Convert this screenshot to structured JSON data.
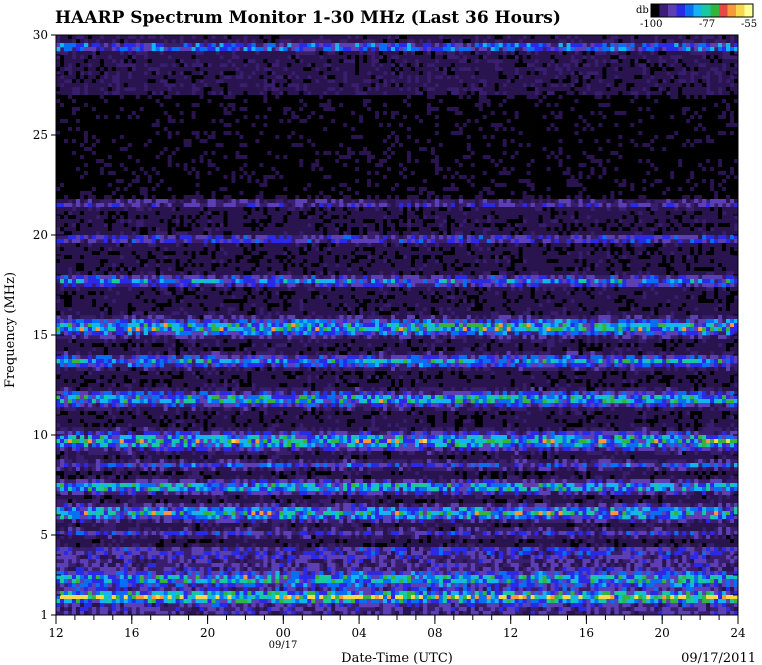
{
  "chart_data": {
    "type": "heatmap",
    "title": "HAARP Spectrum Monitor 1-30 MHz (Last 36 Hours)",
    "xlabel": "Date-Time (UTC)",
    "ylabel": "Frequency (MHz)",
    "date_label": "09/17/2011",
    "day_marker": "09/17",
    "x_hours": [
      12,
      48
    ],
    "x_tick_labels": [
      {
        "hour": 12,
        "label": "12"
      },
      {
        "hour": 16,
        "label": "16"
      },
      {
        "hour": 20,
        "label": "20"
      },
      {
        "hour": 24,
        "label": "00"
      },
      {
        "hour": 28,
        "label": "04"
      },
      {
        "hour": 32,
        "label": "08"
      },
      {
        "hour": 36,
        "label": "12"
      },
      {
        "hour": 40,
        "label": "16"
      },
      {
        "hour": 44,
        "label": "20"
      },
      {
        "hour": 48,
        "label": "24"
      }
    ],
    "ylim": [
      1,
      30
    ],
    "y_ticks": [
      1,
      5,
      10,
      15,
      20,
      25,
      30
    ],
    "colorbar": {
      "unit": "db",
      "min_label": "-100",
      "mid_label": "-77",
      "max_label": "-55",
      "colors": [
        "#000000",
        "#3c1e78",
        "#5c3fb4",
        "#2a2ae6",
        "#0a6ef2",
        "#15b4f0",
        "#18c8a0",
        "#34b43c",
        "#e84848",
        "#f59a3a",
        "#f7d84a",
        "#ffff96"
      ]
    },
    "bands": [
      {
        "freq": 1.9,
        "intensity": 0.75,
        "width": 0.25
      },
      {
        "freq": 2.8,
        "intensity": 0.45,
        "width": 0.3
      },
      {
        "freq": 4.2,
        "intensity": 0.35,
        "width": 0.2
      },
      {
        "freq": 5.1,
        "intensity": 0.3,
        "width": 0.2
      },
      {
        "freq": 6.1,
        "intensity": 0.65,
        "width": 0.35
      },
      {
        "freq": 7.4,
        "intensity": 0.6,
        "width": 0.3
      },
      {
        "freq": 8.5,
        "intensity": 0.35,
        "width": 0.2
      },
      {
        "freq": 9.7,
        "intensity": 0.7,
        "width": 0.4
      },
      {
        "freq": 11.8,
        "intensity": 0.65,
        "width": 0.35
      },
      {
        "freq": 13.7,
        "intensity": 0.55,
        "width": 0.3
      },
      {
        "freq": 15.4,
        "intensity": 0.7,
        "width": 0.4
      },
      {
        "freq": 17.7,
        "intensity": 0.5,
        "width": 0.25
      },
      {
        "freq": 19.8,
        "intensity": 0.35,
        "width": 0.2
      },
      {
        "freq": 21.6,
        "intensity": 0.3,
        "width": 0.2
      },
      {
        "freq": 29.4,
        "intensity": 0.55,
        "width": 0.15
      }
    ]
  }
}
